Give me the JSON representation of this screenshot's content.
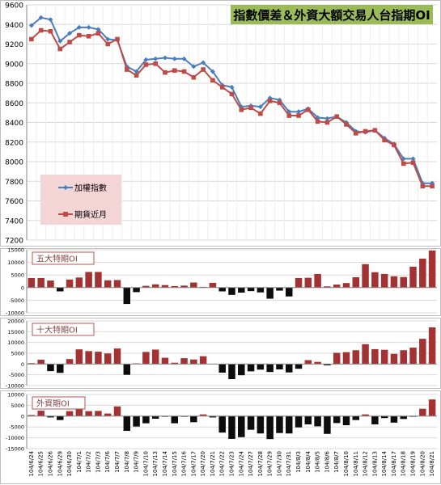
{
  "colors": {
    "index_line": "#4a7ebb",
    "futures_line": "#be4b48",
    "positive_bar": "#a33232",
    "negative_bar": "#0d0d0d",
    "grid": "#d9d9d9",
    "title_bg": "#9bbb59",
    "legend_bg": "#f4d5d6",
    "panel_label_border": "#c0504d"
  },
  "chart_data": [
    {
      "type": "line",
      "title": "指數價差＆外資大額交易人台指期OI",
      "legend": [
        "加權指數",
        "期貨近月"
      ],
      "legend_position": "left-bottom",
      "grid": true,
      "ylim": [
        7200,
        9600
      ],
      "yticks": [
        9600,
        9400,
        9200,
        9000,
        8800,
        8600,
        8400,
        8200,
        8000,
        7800,
        7600,
        7400,
        7200
      ],
      "x": [
        "104/6/24",
        "104/6/25",
        "104/6/26",
        "104/6/29",
        "104/6/30",
        "104/7/1",
        "104/7/2",
        "104/7/3",
        "104/7/6",
        "104/7/7",
        "104/7/8",
        "104/7/9",
        "104/7/10",
        "104/7/13",
        "104/7/14",
        "104/7/15",
        "104/7/16",
        "104/7/17",
        "104/7/20",
        "104/7/21",
        "104/7/22",
        "104/7/23",
        "104/7/24",
        "104/7/27",
        "104/7/28",
        "104/7/29",
        "104/7/30",
        "104/7/31",
        "104/8/3",
        "104/8/4",
        "104/8/5",
        "104/8/6",
        "104/8/7",
        "104/8/10",
        "104/8/11",
        "104/8/12",
        "104/8/13",
        "104/8/14",
        "104/8/17",
        "104/8/18",
        "104/8/19",
        "104/8/20",
        "104/8/21"
      ],
      "series": [
        {
          "name": "加權指數",
          "values": [
            9390,
            9470,
            9450,
            9230,
            9310,
            9370,
            9370,
            9350,
            9250,
            9240,
            8970,
            8920,
            9040,
            9050,
            9060,
            9050,
            9050,
            8970,
            9010,
            8920,
            8780,
            8760,
            8560,
            8570,
            8560,
            8650,
            8630,
            8510,
            8510,
            8540,
            8450,
            8440,
            8460,
            8400,
            8310,
            8300,
            8320,
            8240,
            8180,
            8030,
            8030,
            7780,
            7780
          ]
        },
        {
          "name": "期貨近月",
          "values": [
            9250,
            9340,
            9330,
            9150,
            9220,
            9290,
            9280,
            9310,
            9200,
            9250,
            8940,
            8880,
            8990,
            9000,
            8910,
            8930,
            8920,
            8860,
            8940,
            8830,
            8760,
            8690,
            8530,
            8550,
            8490,
            8620,
            8600,
            8470,
            8470,
            8530,
            8410,
            8400,
            8460,
            8380,
            8290,
            8310,
            8320,
            8220,
            8170,
            7980,
            7990,
            7750,
            7750
          ]
        }
      ]
    },
    {
      "type": "bar",
      "title": "五大特期OI",
      "ylim": [
        -10000,
        15000
      ],
      "yticks": [
        15000,
        10000,
        5000,
        0,
        -5000,
        -10000
      ],
      "grid": true,
      "series": [
        {
          "values": [
            3800,
            3800,
            2800,
            -1500,
            3200,
            4000,
            6200,
            6200,
            2900,
            3000,
            -6500,
            -1800,
            700,
            1300,
            1000,
            600,
            800,
            2000,
            300,
            1900,
            -1500,
            -2900,
            -2000,
            -1400,
            -1900,
            -4400,
            -1200,
            -3500,
            3800,
            3900,
            5400,
            500,
            1200,
            1800,
            4100,
            9300,
            6100,
            5400,
            4500,
            4200,
            8300,
            11500,
            14700
          ]
        }
      ]
    },
    {
      "type": "bar",
      "title": "十大特期OI",
      "ylim": [
        -10000,
        20000
      ],
      "yticks": [
        20000,
        15000,
        10000,
        5000,
        0,
        -5000,
        -10000
      ],
      "grid": true,
      "series": [
        {
          "values": [
            400,
            2000,
            -3300,
            -4100,
            2300,
            6800,
            6000,
            5700,
            4900,
            7200,
            -5000,
            300,
            5600,
            6700,
            2900,
            600,
            2700,
            2100,
            3600,
            100,
            -4000,
            -7000,
            -5200,
            -3400,
            -2600,
            -3700,
            -2500,
            -3900,
            -2200,
            1800,
            1000,
            -600,
            5200,
            5500,
            6400,
            9200,
            6900,
            6600,
            4700,
            6400,
            7600,
            11700,
            17000
          ]
        }
      ]
    },
    {
      "type": "bar",
      "title": "外資期OI",
      "ylim": [
        -15000,
        10000
      ],
      "yticks": [
        10000,
        5000,
        0,
        -5000,
        -10000,
        -15000
      ],
      "grid": true,
      "series": [
        {
          "values": [
            500,
            2500,
            -600,
            -1800,
            2300,
            5000,
            2300,
            2400,
            1200,
            4500,
            -6800,
            -4800,
            -3300,
            -1200,
            -300,
            -3300,
            -300,
            -2800,
            800,
            -600,
            -7600,
            -10500,
            -9700,
            -6300,
            -8000,
            -10600,
            -7800,
            -8000,
            -5200,
            -3800,
            -4700,
            -8200,
            -3200,
            -4200,
            -1800,
            800,
            -3800,
            -900,
            -3000,
            -1300,
            -300,
            3400,
            7700
          ]
        }
      ]
    }
  ]
}
